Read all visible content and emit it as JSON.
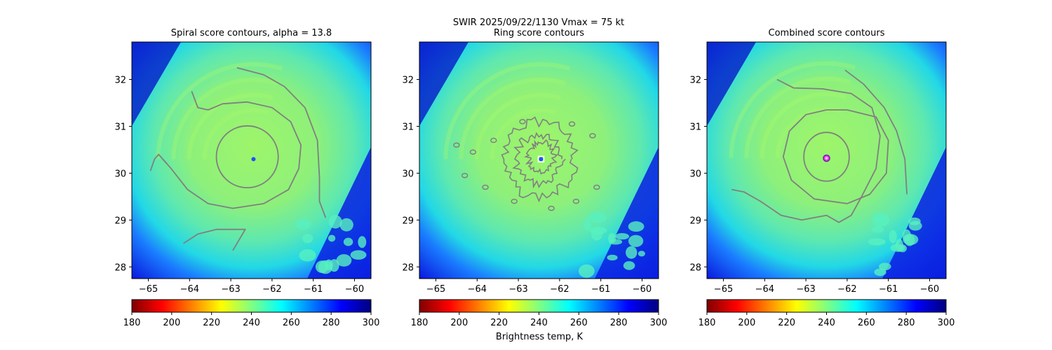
{
  "figure": {
    "suptitle_line1": "SWIR  2025/09/22/1130    Vmax = 75 kt",
    "colorbar_label": "Brightness temp, K"
  },
  "colors": {
    "contour": "#808080",
    "colormap": [
      "#800000",
      "#ff0000",
      "#ff8000",
      "#ffff00",
      "#80ff80",
      "#00ffff",
      "#0080ff",
      "#0000ff",
      "#000080"
    ]
  },
  "chart_data": [
    {
      "type": "heatmap",
      "title": "Spiral score contours, alpha = 13.8",
      "xlim": [
        -65.4,
        -59.6
      ],
      "ylim": [
        27.75,
        32.8
      ],
      "xticks": [
        -65,
        -64,
        -63,
        -62,
        -61,
        -60
      ],
      "yticks": [
        28,
        29,
        30,
        31,
        32
      ],
      "xticklabels": [
        "−65",
        "−64",
        "−63",
        "−62",
        "−61",
        "−60"
      ],
      "yticklabels": [
        "28",
        "29",
        "30",
        "31",
        "32"
      ],
      "storm_center": [
        -62.45,
        30.3
      ],
      "marker": "none",
      "colorbar": {
        "range": [
          180,
          300
        ],
        "ticks": [
          "180",
          "200",
          "220",
          "240",
          "260",
          "280",
          "300"
        ]
      },
      "contours": [
        {
          "kind": "ring",
          "cx": -62.6,
          "cy": 30.35,
          "rx": 0.75,
          "ry": 0.66
        },
        {
          "kind": "path",
          "points": [
            [
              -63.95,
              31.75
            ],
            [
              -63.8,
              31.4
            ],
            [
              -63.55,
              31.35
            ],
            [
              -63.2,
              31.48
            ],
            [
              -62.6,
              31.52
            ],
            [
              -62.0,
              31.4
            ],
            [
              -61.55,
              31.1
            ],
            [
              -61.3,
              30.6
            ],
            [
              -61.35,
              30.1
            ],
            [
              -61.6,
              29.65
            ],
            [
              -62.2,
              29.35
            ],
            [
              -62.95,
              29.25
            ],
            [
              -63.55,
              29.35
            ],
            [
              -64.05,
              29.65
            ],
            [
              -64.45,
              30.1
            ],
            [
              -64.65,
              30.3
            ]
          ]
        },
        {
          "kind": "path",
          "points": [
            [
              -62.85,
              32.25
            ],
            [
              -62.2,
              32.1
            ],
            [
              -61.7,
              31.85
            ],
            [
              -61.2,
              31.4
            ],
            [
              -60.9,
              30.7
            ],
            [
              -60.85,
              29.9
            ],
            [
              -60.85,
              29.4
            ],
            [
              -60.7,
              29.05
            ]
          ]
        },
        {
          "kind": "path",
          "points": [
            [
              -64.55,
              30.2
            ],
            [
              -64.75,
              30.4
            ],
            [
              -64.85,
              30.3
            ],
            [
              -64.95,
              30.05
            ]
          ]
        },
        {
          "kind": "path",
          "points": [
            [
              -64.15,
              28.5
            ],
            [
              -63.8,
              28.7
            ],
            [
              -63.35,
              28.8
            ],
            [
              -62.65,
              28.8
            ],
            [
              -62.85,
              28.5
            ],
            [
              -62.95,
              28.35
            ]
          ]
        }
      ]
    },
    {
      "type": "heatmap",
      "title": "Ring score contours",
      "xlim": [
        -65.4,
        -59.6
      ],
      "ylim": [
        27.75,
        32.8
      ],
      "xticks": [
        -65,
        -64,
        -63,
        -62,
        -61,
        -60
      ],
      "yticks": [
        28,
        29,
        30,
        31,
        32
      ],
      "xticklabels": [
        "−65",
        "−64",
        "−63",
        "−62",
        "−61",
        "−60"
      ],
      "yticklabels": [
        "28",
        "29",
        "30",
        "31",
        "32"
      ],
      "storm_center": [
        -62.45,
        30.3
      ],
      "marker": "square",
      "colorbar": {
        "range": [
          180,
          300
        ],
        "ticks": [
          "180",
          "200",
          "220",
          "240",
          "260",
          "280",
          "300"
        ]
      },
      "contours": [
        {
          "kind": "noisy-ring",
          "cx": -62.5,
          "cy": 30.3,
          "r": 0.85,
          "amp": 0.12,
          "seed": 3
        },
        {
          "kind": "noisy-ring",
          "cx": -62.5,
          "cy": 30.3,
          "r": 0.55,
          "amp": 0.1,
          "seed": 7
        },
        {
          "kind": "noisy-ring",
          "cx": -62.45,
          "cy": 30.35,
          "r": 0.32,
          "amp": 0.08,
          "seed": 11
        }
      ],
      "blobs": [
        [
          -64.5,
          30.6
        ],
        [
          -64.3,
          29.95
        ],
        [
          -63.6,
          30.7
        ],
        [
          -63.8,
          29.7
        ],
        [
          -61.2,
          30.8
        ],
        [
          -61.1,
          29.7
        ],
        [
          -62.2,
          29.25
        ],
        [
          -62.9,
          31.1
        ],
        [
          -61.7,
          31.05
        ],
        [
          -63.1,
          29.4
        ],
        [
          -64.1,
          30.45
        ],
        [
          -61.6,
          29.4
        ]
      ]
    },
    {
      "type": "heatmap",
      "title": "Combined score contours",
      "xlim": [
        -65.4,
        -59.6
      ],
      "ylim": [
        27.75,
        32.8
      ],
      "xticks": [
        -65,
        -64,
        -63,
        -62,
        -61,
        -60
      ],
      "yticks": [
        28,
        29,
        30,
        31,
        32
      ],
      "xticklabels": [
        "−65",
        "−64",
        "−63",
        "−62",
        "−61",
        "−60"
      ],
      "yticklabels": [
        "28",
        "29",
        "30",
        "31",
        "32"
      ],
      "storm_center": [
        -62.5,
        30.32
      ],
      "marker": "circle",
      "colorbar": {
        "range": [
          180,
          300
        ],
        "ticks": [
          "180",
          "200",
          "220",
          "240",
          "260",
          "280",
          "300"
        ]
      },
      "contours": [
        {
          "kind": "ring",
          "cx": -62.5,
          "cy": 30.35,
          "rx": 0.55,
          "ry": 0.52
        },
        {
          "kind": "path",
          "points": [
            [
              -62.0,
              31.35
            ],
            [
              -61.3,
              31.2
            ],
            [
              -61.0,
              30.7
            ],
            [
              -61.05,
              30.0
            ],
            [
              -61.45,
              29.55
            ],
            [
              -62.0,
              29.35
            ],
            [
              -62.8,
              29.45
            ],
            [
              -63.35,
              29.85
            ],
            [
              -63.55,
              30.35
            ],
            [
              -63.4,
              30.9
            ],
            [
              -63.0,
              31.25
            ],
            [
              -62.5,
              31.35
            ],
            [
              -62.0,
              31.35
            ]
          ]
        },
        {
          "kind": "path",
          "points": [
            [
              -62.05,
              32.2
            ],
            [
              -61.6,
              31.9
            ],
            [
              -61.1,
              31.4
            ],
            [
              -60.8,
              30.9
            ],
            [
              -60.6,
              30.3
            ],
            [
              -60.55,
              29.55
            ]
          ]
        },
        {
          "kind": "path",
          "points": [
            [
              -63.7,
              32.0
            ],
            [
              -63.3,
              31.82
            ],
            [
              -62.6,
              31.8
            ],
            [
              -61.9,
              31.7
            ],
            [
              -61.4,
              31.4
            ],
            [
              -61.2,
              30.8
            ],
            [
              -61.3,
              30.1
            ],
            [
              -61.65,
              29.5
            ],
            [
              -61.9,
              29.1
            ],
            [
              -62.2,
              28.95
            ],
            [
              -62.5,
              29.1
            ],
            [
              -63.1,
              29.0
            ],
            [
              -63.6,
              29.1
            ],
            [
              -64.1,
              29.4
            ],
            [
              -64.5,
              29.6
            ],
            [
              -64.8,
              29.65
            ]
          ]
        }
      ]
    }
  ]
}
